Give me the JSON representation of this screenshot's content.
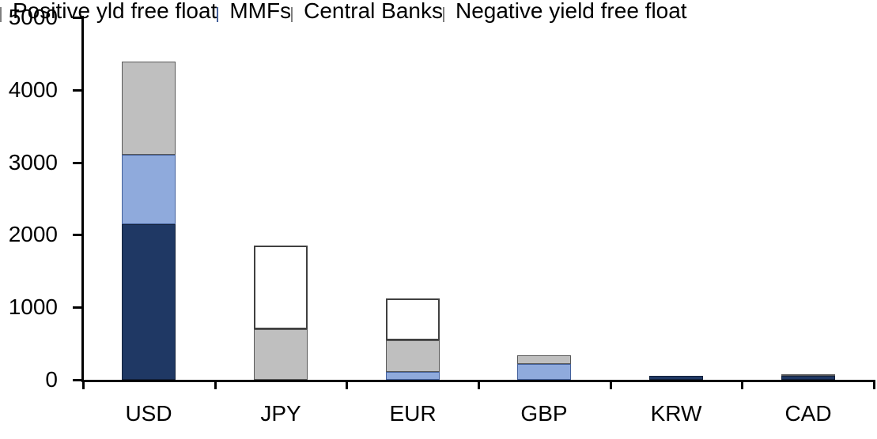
{
  "chart_data": {
    "type": "bar",
    "stacked": true,
    "title": "",
    "xlabel": "",
    "ylabel": "",
    "categories": [
      "USD",
      "JPY",
      "EUR",
      "GBP",
      "KRW",
      "CAD"
    ],
    "series": [
      {
        "name": "Positive yld free float",
        "color": "#1f3864",
        "border_color": "#14223c",
        "swatch_border": "#7f7f7f",
        "values": [
          2150,
          0,
          0,
          0,
          55,
          50
        ]
      },
      {
        "name": "MMFs",
        "color": "#8faadc",
        "border_color": "#44619c",
        "swatch_border": "#44619c",
        "values": [
          950,
          0,
          110,
          220,
          0,
          0
        ]
      },
      {
        "name": "Central Banks",
        "color": "#bfbfbf",
        "border_color": "#595959",
        "swatch_border": "#7f7f7f",
        "values": [
          1290,
          700,
          435,
          120,
          0,
          25
        ]
      },
      {
        "name": "Negative yield free float",
        "color": "#ffffff",
        "border_color": "#404040",
        "swatch_border": "#7f7f7f",
        "values": [
          0,
          1150,
          575,
          0,
          0,
          0
        ]
      }
    ],
    "ylim": [
      0,
      5000
    ],
    "yticks": [
      "0",
      "1000",
      "2000",
      "3000",
      "4000",
      "5000"
    ],
    "grid": false,
    "legend_position": "top"
  },
  "colors": {
    "background": "#ffffff",
    "axis": "#000000",
    "text": "#000000"
  }
}
